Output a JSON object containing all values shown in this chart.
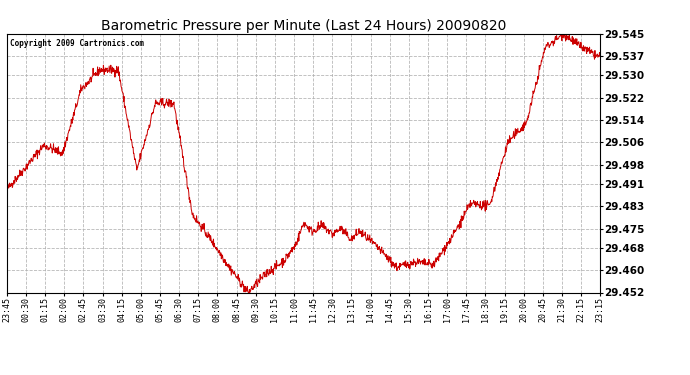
{
  "title": "Barometric Pressure per Minute (Last 24 Hours) 20090820",
  "copyright": "Copyright 2009 Cartronics.com",
  "line_color": "#cc0000",
  "bg_color": "#ffffff",
  "grid_color": "#b0b0b0",
  "yticks": [
    29.452,
    29.46,
    29.468,
    29.475,
    29.483,
    29.491,
    29.498,
    29.506,
    29.514,
    29.522,
    29.53,
    29.537,
    29.545
  ],
  "ylim": [
    29.452,
    29.545
  ],
  "xtick_labels": [
    "23:45",
    "00:30",
    "01:15",
    "02:00",
    "02:45",
    "03:30",
    "04:15",
    "05:00",
    "05:45",
    "06:30",
    "07:15",
    "08:00",
    "08:45",
    "09:30",
    "10:15",
    "11:00",
    "11:45",
    "12:30",
    "13:15",
    "14:00",
    "14:45",
    "15:30",
    "16:15",
    "17:00",
    "17:45",
    "18:30",
    "19:15",
    "20:00",
    "20:45",
    "21:30",
    "22:15",
    "23:15"
  ],
  "keypoints_x": [
    0,
    45,
    90,
    135,
    180,
    225,
    270,
    315,
    360,
    405,
    450,
    495,
    540,
    585,
    630,
    660,
    675,
    700,
    720,
    740,
    765,
    790,
    810,
    835,
    855,
    900,
    945,
    990,
    1035,
    1080,
    1125,
    1170,
    1215,
    1260,
    1305,
    1350,
    1395,
    1430,
    1439
  ],
  "keypoints_y": [
    29.489,
    29.497,
    29.505,
    29.502,
    29.525,
    29.532,
    29.532,
    29.496,
    29.52,
    29.52,
    29.48,
    29.471,
    29.461,
    29.452,
    29.459,
    29.462,
    29.464,
    29.469,
    29.477,
    29.474,
    29.476,
    29.473,
    29.475,
    29.471,
    29.474,
    29.468,
    29.461,
    29.463,
    29.462,
    29.472,
    29.484,
    29.483,
    29.506,
    29.513,
    29.54,
    29.545,
    29.54,
    29.537,
    29.537
  ],
  "noise_seed": 42,
  "noise_std": 0.0008
}
